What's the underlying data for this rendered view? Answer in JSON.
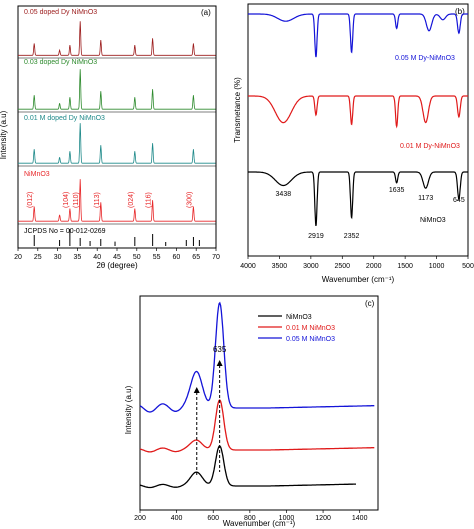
{
  "panels": {
    "a": {
      "label": "(a)",
      "ylabel": "Intensity (a.u)",
      "xlabel": "2θ (degree)",
      "xticks": [
        "20",
        "25",
        "30",
        "35",
        "40",
        "45",
        "50",
        "55",
        "60",
        "65",
        "70"
      ],
      "reference_label": "JCPDS No = 00-012-0269",
      "hkl": [
        "(012)",
        "(104)",
        "(110)",
        "(113)",
        "(024)",
        "(116)",
        "(300)"
      ]
    },
    "b": {
      "label": "(b)",
      "ylabel": "Transmetance (%)",
      "xlabel": "Wavenumber (cm⁻¹)",
      "xticks": [
        "4000",
        "3500",
        "3000",
        "2500",
        "2000",
        "1500",
        "1000",
        "500"
      ],
      "annotations": [
        "3438",
        "2919",
        "2352",
        "1635",
        "1173",
        "645"
      ]
    },
    "c": {
      "label": "(c)",
      "ylabel": "Intensity (a.u)",
      "xlabel": "Wavenumber (cm⁻¹)",
      "xticks": [
        "200",
        "400",
        "600",
        "800",
        "1000",
        "1200",
        "1400"
      ],
      "peak_label": "635"
    }
  },
  "chart_data": [
    {
      "type": "line",
      "panel": "a",
      "title": "",
      "xlabel": "2θ (degree)",
      "ylabel": "Intensity (a.u)",
      "xlim": [
        20,
        70
      ],
      "peaks_x": [
        24.1,
        30.5,
        33.1,
        35.7,
        40.9,
        49.5,
        54.0,
        64.3
      ],
      "peaks_rel": [
        0.35,
        0.15,
        0.3,
        1.0,
        0.45,
        0.3,
        0.5,
        0.35
      ],
      "series": [
        {
          "name": "0.05 doped Dy NiMnO3",
          "color": "#9c1c1c"
        },
        {
          "name": "0.03 doped Dy NiMnO3",
          "color": "#2e8b2e"
        },
        {
          "name": "0.01 M doped Dy NiMnO3",
          "color": "#1f8a8a"
        },
        {
          "name": "NiMnO3",
          "color": "#e8282a"
        }
      ],
      "reference": {
        "name": "JCPDS No = 00-012-0269",
        "x": [
          24.1,
          30.5,
          33.1,
          35.7,
          38.2,
          40.9,
          44.5,
          49.5,
          54.0,
          57.3,
          62.5,
          64.3,
          65.8
        ],
        "rel": [
          0.55,
          0.3,
          0.85,
          0.4,
          0.25,
          0.35,
          0.22,
          0.45,
          0.6,
          0.2,
          0.3,
          0.45,
          0.3
        ]
      }
    },
    {
      "type": "line",
      "panel": "b",
      "title": "",
      "xlabel": "Wavenumber (cm⁻¹)",
      "ylabel": "Transmetance (%)",
      "xlim": [
        4000,
        500
      ],
      "series": [
        {
          "name": "0.05 M Dy-NiMnO3",
          "color": "#1414d8",
          "dips": [
            [
              3400,
              0.15
            ],
            [
              2919,
              0.9
            ],
            [
              2352,
              0.8
            ],
            [
              1635,
              0.3
            ],
            [
              1120,
              0.35
            ],
            [
              900,
              0.12
            ],
            [
              645,
              0.4
            ]
          ]
        },
        {
          "name": "0.01 M Dy-NiMnO3",
          "color": "#e01a1a",
          "dips": [
            [
              3438,
              0.7
            ],
            [
              2919,
              0.5
            ],
            [
              2352,
              0.75
            ],
            [
              1635,
              0.8
            ],
            [
              1173,
              0.7
            ],
            [
              645,
              0.55
            ]
          ]
        },
        {
          "name": "NiMnO3",
          "color": "#000000",
          "dips": [
            [
              3438,
              0.25
            ],
            [
              2919,
              1.0
            ],
            [
              2352,
              0.85
            ],
            [
              1635,
              0.2
            ],
            [
              1173,
              0.3
            ],
            [
              645,
              0.5
            ]
          ]
        }
      ],
      "annotations": [
        {
          "text": "3438",
          "x": 3438
        },
        {
          "text": "2919",
          "x": 2919
        },
        {
          "text": "2352",
          "x": 2352
        },
        {
          "text": "1635",
          "x": 1635
        },
        {
          "text": "1173",
          "x": 1173
        },
        {
          "text": "645",
          "x": 645
        }
      ]
    },
    {
      "type": "line",
      "panel": "c",
      "title": "",
      "xlabel": "Wavenumber (cm⁻¹)",
      "ylabel": "Intensity (a.u)",
      "xlim": [
        200,
        1500
      ],
      "peak_label": "635",
      "peak_x": 635,
      "shoulder_x": 510,
      "legend": [
        "NiMnO3",
        "0.01 M NiMnO3",
        "0.05 M NiMnO3"
      ],
      "series": [
        {
          "name": "NiMnO3",
          "color": "#000000"
        },
        {
          "name": "0.01 M NiMnO3",
          "color": "#e01a1a"
        },
        {
          "name": "0.05 M NiMnO3",
          "color": "#1414d8"
        }
      ]
    }
  ]
}
